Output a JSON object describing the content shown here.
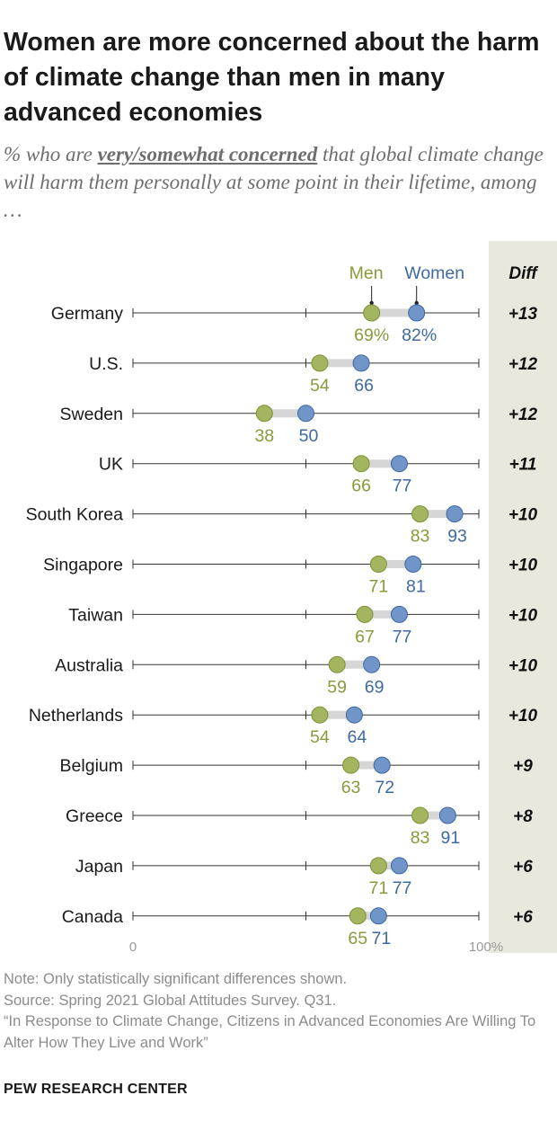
{
  "title": "Women are more concerned about the harm of climate change than men in many advanced economies",
  "subtitle": {
    "before": "% who are ",
    "emphasis": "very/somewhat concerned",
    "after": " that global climate change will harm them personally at some point in their lifetime, among …"
  },
  "notes": {
    "note": "Note: Only statistically significant differences shown.",
    "source": "Source: Spring 2021 Global Attitudes Survey. Q31.",
    "report": "“In Response to Climate Change, Citizens in Advanced Economies Are Willing To Alter How They Live and Work”"
  },
  "brand": "PEW RESEARCH CENTER",
  "colors": {
    "men": "#a3b55e",
    "women": "#6f95c9",
    "men_text": "#8a9a3c",
    "women_text": "#3f6aa1",
    "men_stroke": "#7d8f35",
    "women_stroke": "#3e66a0",
    "connector": "#d6d6d6",
    "diff_column": "#e8e8dd",
    "axis": "#333333"
  },
  "chart_data": {
    "type": "dot",
    "series": [
      {
        "name": "Men",
        "values": [
          69,
          54,
          38,
          66,
          83,
          71,
          67,
          59,
          54,
          63,
          83,
          71,
          65
        ]
      },
      {
        "name": "Women",
        "values": [
          82,
          66,
          50,
          77,
          93,
          81,
          77,
          69,
          64,
          72,
          91,
          77,
          71
        ]
      }
    ],
    "categories": [
      "Germany",
      "U.S.",
      "Sweden",
      "UK",
      "South Korea",
      "Singapore",
      "Taiwan",
      "Australia",
      "Netherlands",
      "Belgium",
      "Greece",
      "Japan",
      "Canada"
    ],
    "diff": [
      "+13",
      "+12",
      "+12",
      "+11",
      "+10",
      "+10",
      "+10",
      "+10",
      "+10",
      "+9",
      "+8",
      "+6",
      "+6"
    ],
    "diff_header": "Diff",
    "first_row_suffix": "%",
    "xlim": [
      0,
      100
    ],
    "x_ticks": [
      0,
      50,
      100
    ],
    "x_tick_labels": [
      "0",
      "",
      "100%"
    ],
    "xlabel": "",
    "ylabel": ""
  }
}
